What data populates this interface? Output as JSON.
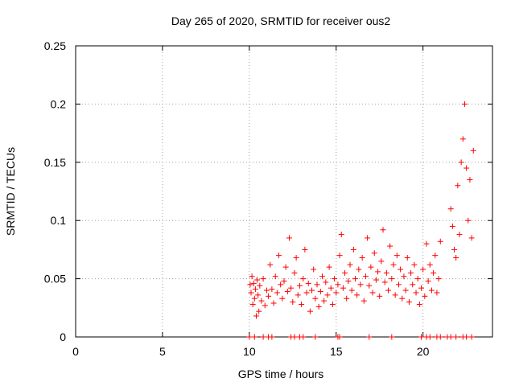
{
  "chart_data": {
    "type": "scatter",
    "title": "Day 265 of 2020, SRMTID for receiver ous2",
    "xlabel": "GPS time / hours",
    "ylabel": "SRMTID / TECUs",
    "xlim": [
      0,
      24
    ],
    "ylim": [
      0,
      0.25
    ],
    "xticks": [
      0,
      5,
      10,
      15,
      20
    ],
    "xtick_labels": [
      "0",
      "5",
      "10",
      "15",
      "20"
    ],
    "yticks": [
      0,
      0.05,
      0.1,
      0.15,
      0.2,
      0.25
    ],
    "ytick_labels": [
      "0",
      "0.05",
      "0.1",
      "0.15",
      "0.2",
      "0.25"
    ],
    "grid": true,
    "marker": "+",
    "color": "#ff0000",
    "series": [
      {
        "name": "SRMTID",
        "x": [
          10.05,
          10.1,
          10.15,
          10.2,
          10.25,
          10.3,
          10.35,
          10.4,
          10.45,
          10.5,
          10.55,
          10.6,
          10.7,
          10.8,
          10.9,
          11.0,
          11.1,
          11.2,
          11.3,
          11.4,
          11.5,
          11.6,
          11.7,
          11.8,
          11.9,
          12.0,
          12.1,
          12.2,
          12.3,
          12.4,
          12.5,
          12.6,
          12.7,
          12.8,
          12.9,
          13.0,
          13.1,
          13.2,
          13.3,
          13.4,
          13.5,
          13.6,
          13.7,
          13.8,
          13.9,
          14.0,
          14.1,
          14.2,
          14.3,
          14.4,
          14.5,
          14.6,
          14.7,
          14.8,
          14.9,
          15.0,
          15.1,
          15.2,
          15.3,
          15.4,
          15.5,
          15.6,
          15.7,
          15.8,
          15.9,
          16.0,
          16.1,
          16.2,
          16.3,
          16.4,
          16.5,
          16.6,
          16.7,
          16.8,
          16.9,
          17.0,
          17.1,
          17.2,
          17.3,
          17.4,
          17.5,
          17.6,
          17.7,
          17.8,
          17.9,
          18.0,
          18.1,
          18.2,
          18.3,
          18.4,
          18.5,
          18.6,
          18.7,
          18.8,
          18.9,
          19.0,
          19.1,
          19.2,
          19.3,
          19.4,
          19.5,
          19.6,
          19.7,
          19.8,
          19.9,
          20.0,
          20.1,
          20.2,
          20.3,
          20.4,
          20.5,
          20.6,
          20.7,
          20.8,
          20.9,
          21.0,
          21.6,
          21.7,
          21.8,
          21.9,
          22.0,
          22.1,
          22.2,
          22.3,
          22.4,
          22.5,
          22.6,
          22.7,
          22.8,
          22.9
        ],
        "y": [
          0.045,
          0.038,
          0.052,
          0.028,
          0.046,
          0.033,
          0.041,
          0.018,
          0.049,
          0.036,
          0.022,
          0.044,
          0.031,
          0.05,
          0.027,
          0.04,
          0.035,
          0.062,
          0.041,
          0.029,
          0.052,
          0.038,
          0.07,
          0.045,
          0.033,
          0.048,
          0.06,
          0.039,
          0.085,
          0.042,
          0.03,
          0.055,
          0.068,
          0.036,
          0.044,
          0.028,
          0.05,
          0.075,
          0.038,
          0.046,
          0.022,
          0.04,
          0.058,
          0.033,
          0.045,
          0.026,
          0.039,
          0.052,
          0.031,
          0.047,
          0.036,
          0.06,
          0.042,
          0.028,
          0.05,
          0.038,
          0.045,
          0.07,
          0.088,
          0.042,
          0.055,
          0.033,
          0.048,
          0.062,
          0.04,
          0.075,
          0.05,
          0.036,
          0.058,
          0.045,
          0.068,
          0.031,
          0.052,
          0.085,
          0.044,
          0.06,
          0.038,
          0.072,
          0.049,
          0.056,
          0.035,
          0.065,
          0.092,
          0.047,
          0.055,
          0.04,
          0.078,
          0.05,
          0.062,
          0.036,
          0.07,
          0.045,
          0.058,
          0.033,
          0.052,
          0.04,
          0.068,
          0.03,
          0.055,
          0.045,
          0.062,
          0.038,
          0.05,
          0.028,
          0.042,
          0.058,
          0.035,
          0.08,
          0.048,
          0.062,
          0.04,
          0.055,
          0.07,
          0.038,
          0.05,
          0.082,
          0.11,
          0.095,
          0.075,
          0.068,
          0.13,
          0.088,
          0.15,
          0.17,
          0.2,
          0.145,
          0.1,
          0.135,
          0.085,
          0.16
        ],
        "zero_x": [
          10.0,
          10.3,
          10.8,
          11.1,
          11.3,
          12.4,
          12.6,
          12.9,
          13.1,
          13.8,
          15.1,
          15.2,
          16.9,
          18.2,
          19.9,
          20.2,
          20.4,
          20.8,
          21.0,
          21.4,
          21.6,
          21.9,
          22.3,
          22.5,
          22.8
        ]
      }
    ]
  }
}
